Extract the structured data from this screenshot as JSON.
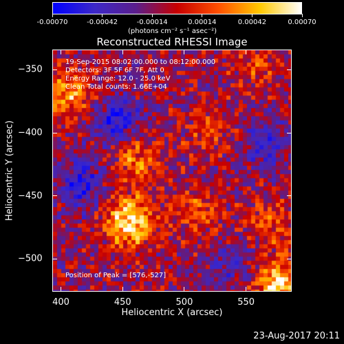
{
  "chart_data": {
    "type": "heatmap",
    "title": "Reconstructed RHESSI Image",
    "xlabel": "Heliocentric X (arcsec)",
    "ylabel": "Heliocentric Y (arcsec)",
    "xlim": [
      393,
      587
    ],
    "ylim": [
      -526,
      -334
    ],
    "x_ticks": [
      "400",
      "450",
      "500",
      "550"
    ],
    "x_tick_values": [
      400,
      450,
      500,
      550
    ],
    "y_ticks": [
      "-350",
      "-400",
      "-450",
      "-500"
    ],
    "y_tick_values": [
      -350,
      -400,
      -450,
      -500
    ],
    "colorbar": {
      "ticks": [
        "-0.00070",
        "-0.00042",
        "-0.00014",
        "0.00014",
        "0.00042",
        "0.00070"
      ],
      "range": [
        -0.0007,
        0.0007
      ],
      "unit": "(photons cm⁻² s⁻¹ asec⁻²)",
      "colors": [
        "#0000ff",
        "#3c28c8",
        "#5a1e8c",
        "#c80000",
        "#ff5000",
        "#ffc800",
        "#ffffff"
      ]
    },
    "annotations": [
      "19-Sep-2015 08:02:00.000 to 08:12:00.000",
      "Detectors: 3F 5F 6F 7F, Att 0",
      "Energy Range: 12.0 - 25.0 keV",
      "Clean    Total counts: 1.66E+04"
    ],
    "peak_label": "Position of Peak = [576,-527]",
    "peak_position": [
      576,
      -527
    ],
    "bright_regions": [
      {
        "x": 455,
        "y": -470,
        "level": 0.0007
      },
      {
        "x": 405,
        "y": -370,
        "level": 0.0005
      },
      {
        "x": 575,
        "y": -520,
        "level": 0.0007
      },
      {
        "x": 460,
        "y": -420,
        "level": 0.0004
      },
      {
        "x": 520,
        "y": -400,
        "level": 0.00025
      },
      {
        "x": 555,
        "y": -345,
        "level": 0.00025
      },
      {
        "x": 570,
        "y": -470,
        "level": 0.0003
      },
      {
        "x": 510,
        "y": -460,
        "level": 0.0003
      }
    ],
    "dim_regions": [
      {
        "x": 445,
        "y": -390,
        "level": -0.00045
      },
      {
        "x": 415,
        "y": -440,
        "level": -0.0004
      },
      {
        "x": 565,
        "y": -410,
        "level": -0.0003
      },
      {
        "x": 540,
        "y": -505,
        "level": -0.00025
      }
    ],
    "grid": false
  },
  "timestamp": "23-Aug-2017 20:11"
}
